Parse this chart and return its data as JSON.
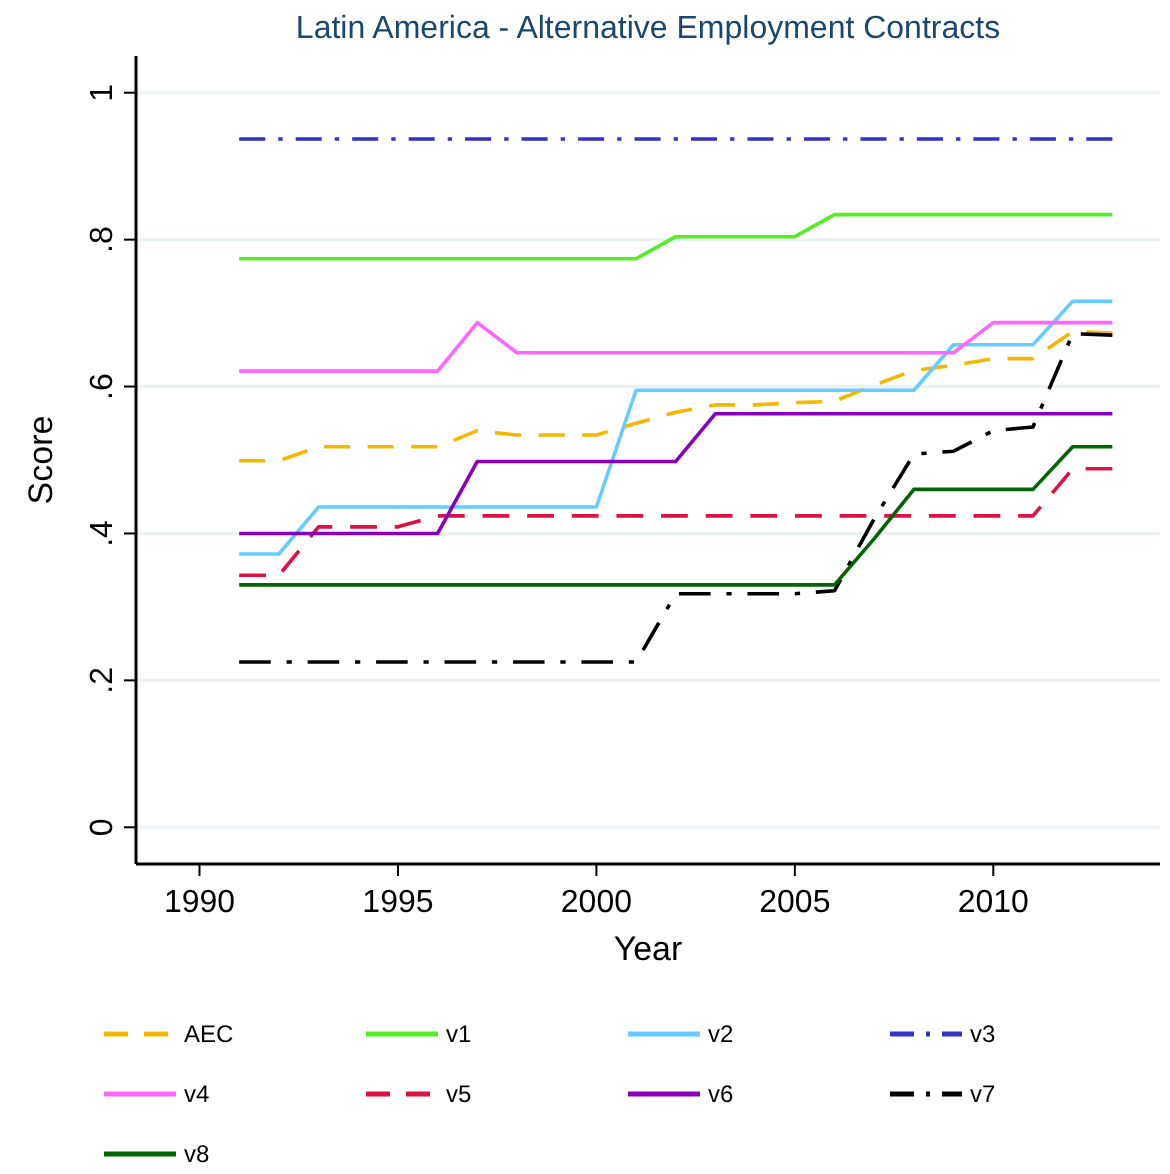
{
  "chart_data": {
    "type": "line",
    "title": "Latin America - Alternative Employment Contracts",
    "xlabel": "Year",
    "ylabel": "Score",
    "x": [
      1991,
      1992,
      1993,
      1994,
      1995,
      1996,
      1997,
      1998,
      1999,
      2000,
      2001,
      2002,
      2003,
      2004,
      2005,
      2006,
      2007,
      2008,
      2009,
      2010,
      2011,
      2012,
      2013
    ],
    "xlim": [
      1988.4,
      2014.2
    ],
    "xticks": [
      1990,
      1995,
      2000,
      2005,
      2010
    ],
    "ylim": [
      -0.05,
      1.05
    ],
    "yticks": [
      {
        "value": 0,
        "label": "0"
      },
      {
        "value": 0.2,
        "label": ".2"
      },
      {
        "value": 0.4,
        "label": ".4"
      },
      {
        "value": 0.6,
        "label": ".6"
      },
      {
        "value": 0.8,
        "label": ".8"
      },
      {
        "value": 1,
        "label": "1"
      }
    ],
    "grid": "y",
    "legend": "bottom",
    "series": [
      {
        "name": "AEC",
        "color": "#f5b800",
        "line_style": "dashed",
        "values": [
          0.499,
          0.499,
          0.518,
          0.518,
          0.518,
          0.518,
          0.54,
          0.534,
          0.534,
          0.534,
          0.55,
          0.565,
          0.575,
          0.575,
          0.578,
          0.58,
          0.602,
          0.622,
          0.629,
          0.638,
          0.638,
          0.675,
          0.673
        ]
      },
      {
        "name": "v1",
        "color": "#55ee22",
        "line_style": "solid",
        "values": [
          0.774,
          0.774,
          0.774,
          0.774,
          0.774,
          0.774,
          0.774,
          0.774,
          0.774,
          0.774,
          0.774,
          0.804,
          0.804,
          0.804,
          0.804,
          0.834,
          0.834,
          0.834,
          0.834,
          0.834,
          0.834,
          0.834,
          0.834
        ]
      },
      {
        "name": "v2",
        "color": "#66ccff",
        "line_style": "solid",
        "values": [
          0.372,
          0.372,
          0.436,
          0.436,
          0.436,
          0.436,
          0.436,
          0.436,
          0.436,
          0.436,
          0.595,
          0.595,
          0.595,
          0.595,
          0.595,
          0.595,
          0.595,
          0.595,
          0.657,
          0.657,
          0.657,
          0.716,
          0.716
        ]
      },
      {
        "name": "v3",
        "color": "#3333cc",
        "line_style": "dashdot",
        "values": [
          0.937,
          0.937,
          0.937,
          0.937,
          0.937,
          0.937,
          0.937,
          0.937,
          0.937,
          0.937,
          0.937,
          0.937,
          0.937,
          0.937,
          0.937,
          0.937,
          0.937,
          0.937,
          0.937,
          0.937,
          0.937,
          0.937,
          0.937
        ]
      },
      {
        "name": "v4",
        "color": "#ff66ff",
        "line_style": "solid",
        "values": [
          0.621,
          0.621,
          0.621,
          0.621,
          0.621,
          0.621,
          0.687,
          0.646,
          0.646,
          0.646,
          0.646,
          0.646,
          0.646,
          0.646,
          0.646,
          0.646,
          0.646,
          0.646,
          0.646,
          0.687,
          0.687,
          0.687,
          0.687
        ]
      },
      {
        "name": "v5",
        "color": "#dd1144",
        "line_style": "dashed",
        "values": [
          0.343,
          0.343,
          0.409,
          0.409,
          0.409,
          0.424,
          0.424,
          0.424,
          0.424,
          0.424,
          0.424,
          0.424,
          0.424,
          0.424,
          0.424,
          0.424,
          0.424,
          0.424,
          0.424,
          0.424,
          0.424,
          0.488,
          0.488
        ]
      },
      {
        "name": "v6",
        "color": "#8800bb",
        "line_style": "solid",
        "values": [
          0.4,
          0.4,
          0.4,
          0.4,
          0.4,
          0.4,
          0.498,
          0.498,
          0.498,
          0.498,
          0.498,
          0.498,
          0.563,
          0.563,
          0.563,
          0.563,
          0.563,
          0.563,
          0.563,
          0.563,
          0.563,
          0.563,
          0.563
        ]
      },
      {
        "name": "v7",
        "color": "#000000",
        "line_style": "dashdot",
        "values": [
          0.225,
          0.225,
          0.225,
          0.225,
          0.225,
          0.225,
          0.225,
          0.225,
          0.225,
          0.225,
          0.225,
          0.318,
          0.318,
          0.318,
          0.318,
          0.322,
          0.42,
          0.508,
          0.512,
          0.54,
          0.545,
          0.672,
          0.67
        ]
      },
      {
        "name": "v8",
        "color": "#006600",
        "line_style": "solid",
        "values": [
          0.33,
          0.33,
          0.33,
          0.33,
          0.33,
          0.33,
          0.33,
          0.33,
          0.33,
          0.33,
          0.33,
          0.33,
          0.33,
          0.33,
          0.33,
          0.33,
          0.393,
          0.46,
          0.46,
          0.46,
          0.46,
          0.518,
          0.518
        ]
      }
    ]
  }
}
